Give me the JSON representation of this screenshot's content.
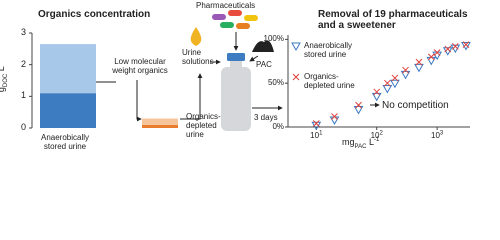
{
  "organics_chart": {
    "type": "bar",
    "title": "Organics concentration",
    "y_label": {
      "base": "g",
      "sub": "DOC",
      "unit": "L",
      "sup": "-1"
    },
    "ylim": [
      0,
      3
    ],
    "yticks": [
      0,
      1,
      2,
      3
    ],
    "categories": [
      "Anaerobically stored urine",
      "Organics-depleted urine"
    ],
    "series": [
      {
        "colors": [
          "#3d7cc0",
          "#e87b2e"
        ],
        "values": [
          1.1,
          0.1
        ]
      },
      {
        "colors": [
          "#a8c8ea",
          "#f6c49a"
        ],
        "values": [
          1.55,
          0.2
        ]
      }
    ]
  },
  "diagram": {
    "low_mw_label": "Low molecular weight organics",
    "pharmaceuticals_label": "Pharmaceuticals",
    "urine_label": "Urine solutions",
    "pac_label": "PAC",
    "duration_label": "3 days"
  },
  "removal_chart": {
    "type": "scatter",
    "title": "Removal of 19 pharmaceuticals and a sweetener",
    "x_label": {
      "base": "mg",
      "sub": "PAC",
      "unit": "L",
      "sup": "-1"
    },
    "log_x": true,
    "xlim": [
      3.4,
      3500
    ],
    "xticks": [
      {
        "value": 10,
        "label": "10",
        "exp": "1"
      },
      {
        "value": 100,
        "label": "10",
        "exp": "2"
      },
      {
        "value": 1000,
        "label": "10",
        "exp": "3"
      }
    ],
    "ylim": [
      0,
      105
    ],
    "yticks": [
      {
        "value": 0,
        "label": "0%"
      },
      {
        "value": 50,
        "label": "50%"
      },
      {
        "value": 100,
        "label": "100%"
      }
    ],
    "series": [
      {
        "name": "Anaerobically stored urine",
        "marker": "triangle",
        "color": "#3a78c2",
        "x": [
          10,
          20,
          50,
          100,
          150,
          200,
          300,
          500,
          800,
          1000,
          1500,
          2000,
          3000
        ],
        "y": [
          2,
          8,
          20,
          35,
          44,
          50,
          60,
          68,
          76,
          82,
          87,
          90,
          93
        ]
      },
      {
        "name": "Organics-depleted urine",
        "marker": "x",
        "color": "#e0413a",
        "x": [
          10,
          20,
          50,
          100,
          150,
          200,
          300,
          500,
          800,
          1000,
          1500,
          2000,
          3000
        ],
        "y": [
          4,
          12,
          25,
          40,
          50,
          56,
          65,
          74,
          80,
          85,
          89,
          92,
          94
        ]
      }
    ],
    "annotation": "No competition"
  }
}
